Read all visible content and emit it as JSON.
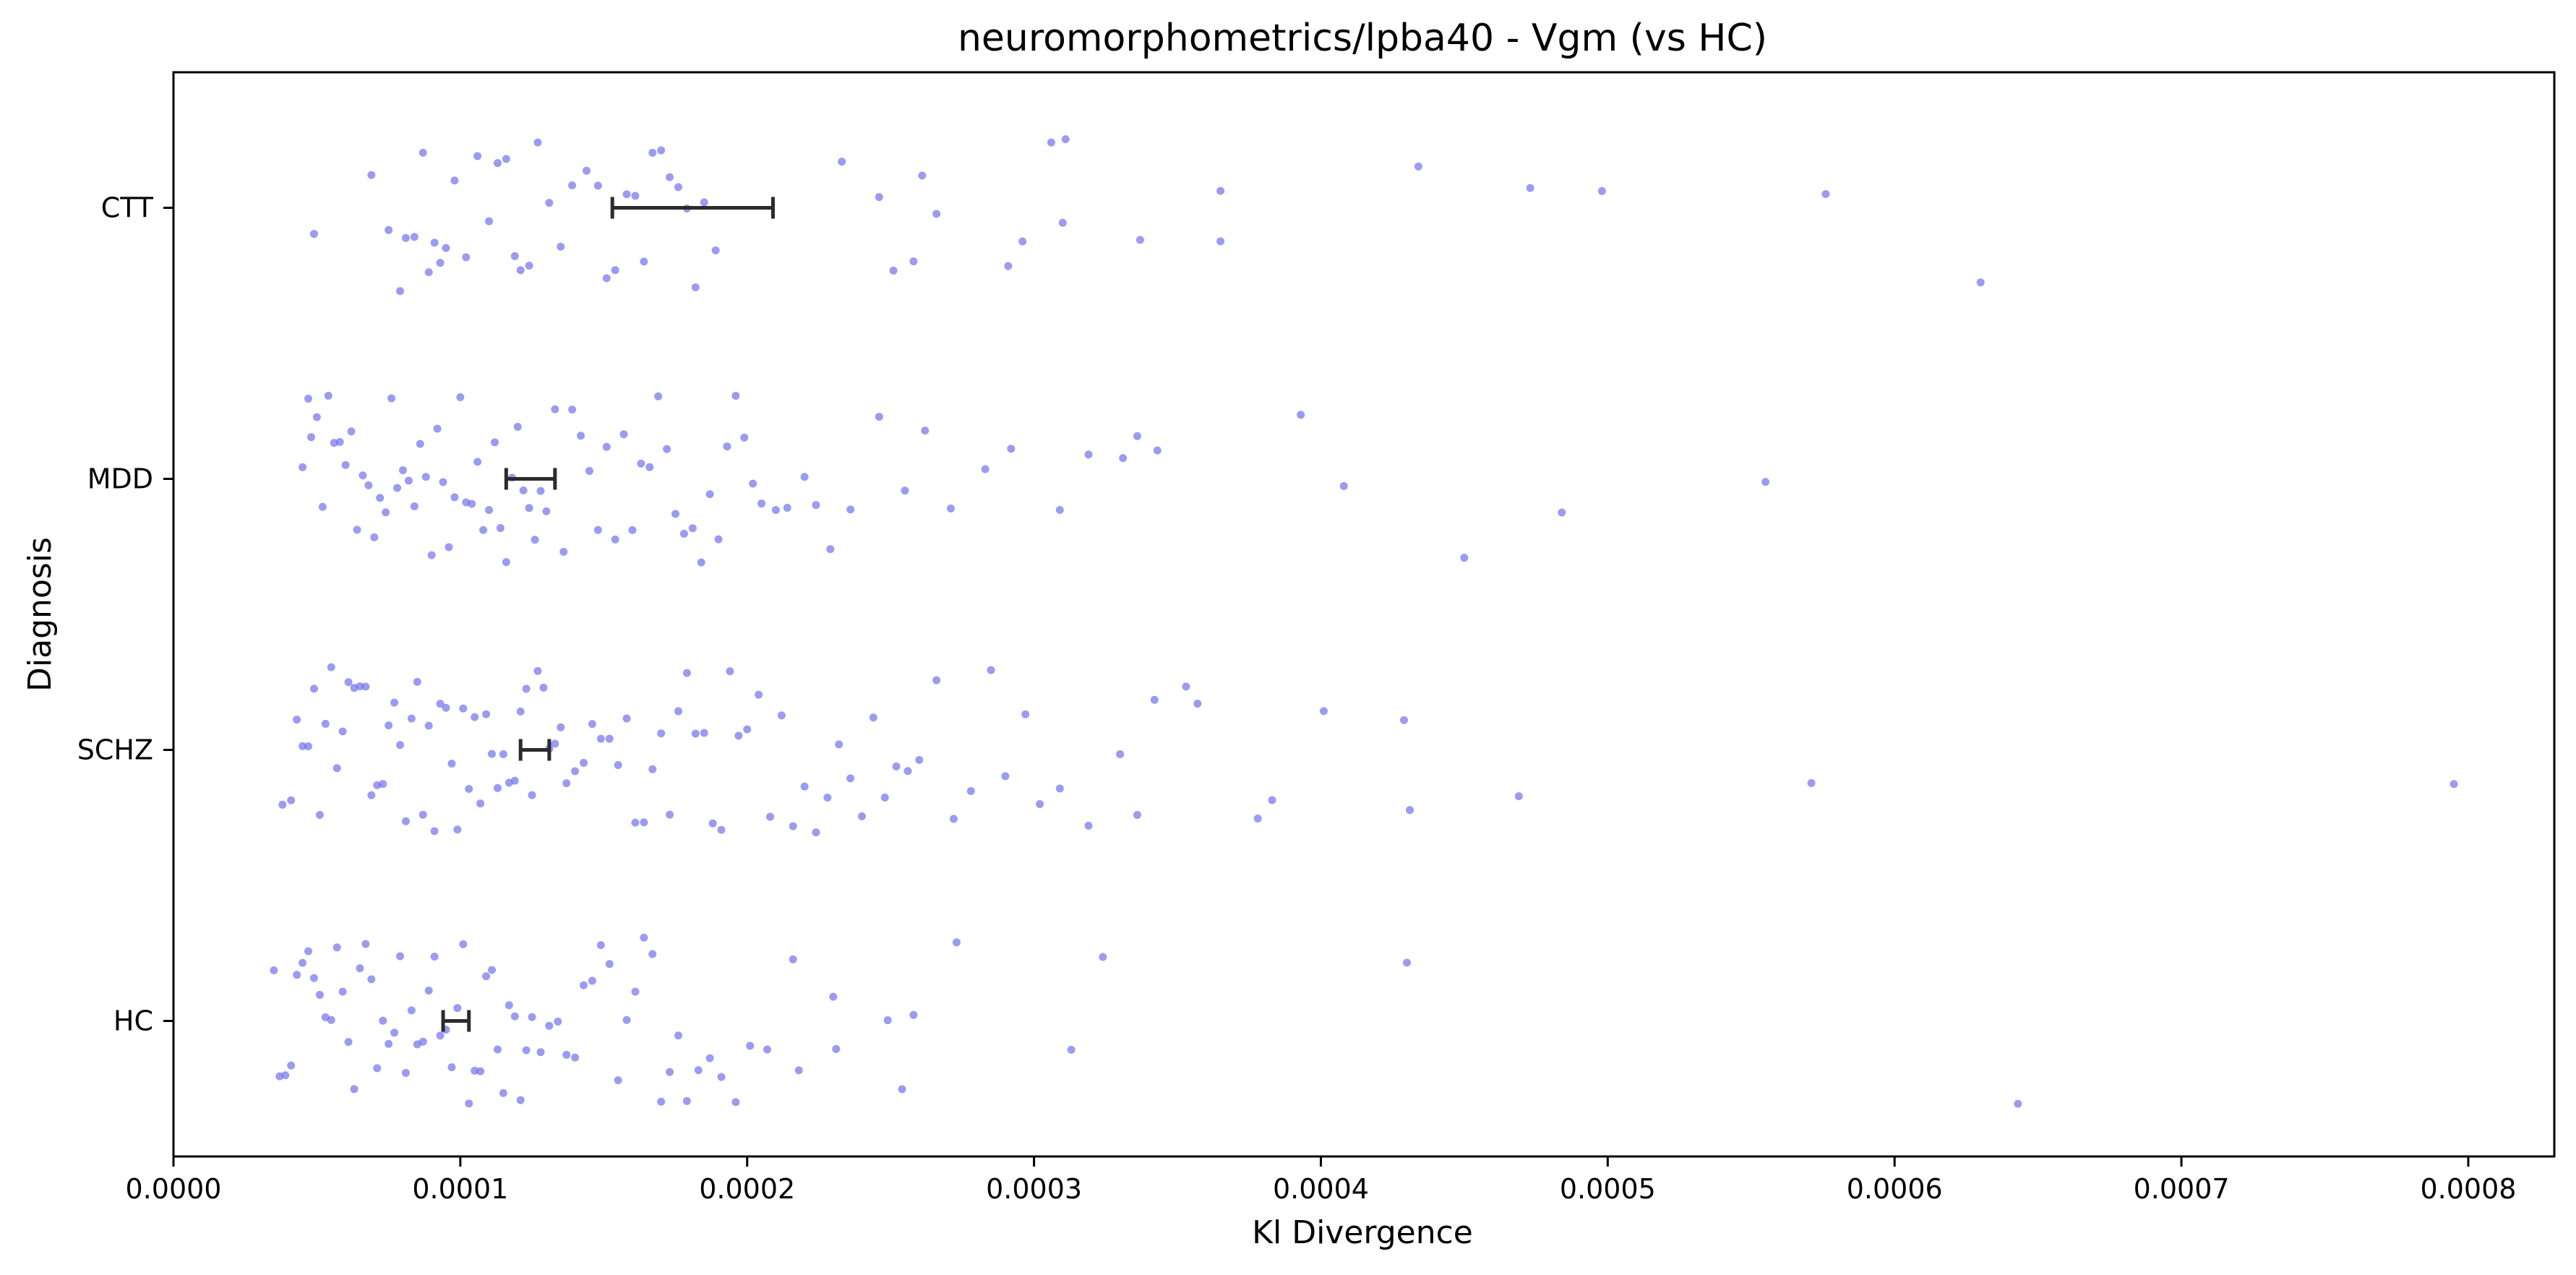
{
  "chart_data": {
    "type": "scatter",
    "subtype": "horizontal strip plot (jittered points with mean and error bars)",
    "title": "neuromorphometrics/lpba40 - Vgm (vs HC)",
    "xlabel": "Kl Divergence",
    "ylabel": "Diagnosis",
    "xlim": [
      0.0,
      0.00083
    ],
    "x_ticks": [
      0.0,
      0.0001,
      0.0002,
      0.0003,
      0.0004,
      0.0005,
      0.0006,
      0.0007,
      0.0008
    ],
    "x_tick_labels": [
      "0.0000",
      "0.0001",
      "0.0002",
      "0.0003",
      "0.0004",
      "0.0005",
      "0.0006",
      "0.0007",
      "0.0008"
    ],
    "categories": [
      "CTT",
      "MDD",
      "SCHZ",
      "HC"
    ],
    "grid": false,
    "legend": "none",
    "point_color": "#6b6bea",
    "errorbar_color": "#2b2b2b",
    "series": [
      {
        "category": "CTT",
        "mean": 0.000181,
        "ci": [
          0.000153,
          0.000209
        ],
        "sample_points": [
          4.9e-05,
          6.9e-05,
          7.5e-05,
          7.9e-05,
          8.1e-05,
          8.4e-05,
          8.7e-05,
          8.9e-05,
          9.1e-05,
          9.3e-05,
          9.5e-05,
          9.8e-05,
          0.000102,
          0.000106,
          0.00011,
          0.000113,
          0.000116,
          0.000119,
          0.000121,
          0.000124,
          0.000127,
          0.000131,
          0.000135,
          0.000139,
          0.000144,
          0.000148,
          0.000151,
          0.000154,
          0.000158,
          0.000161,
          0.000164,
          0.000167,
          0.00017,
          0.000173,
          0.000176,
          0.000179,
          0.000182,
          0.000185,
          0.000189,
          0.000233,
          0.000246,
          0.000251,
          0.000258,
          0.000261,
          0.000266,
          0.000291,
          0.000296,
          0.000306,
          0.00031,
          0.000311,
          0.000337,
          0.000365,
          0.000365,
          0.000434,
          0.000473,
          0.000498,
          0.000576,
          0.00063
        ]
      },
      {
        "category": "MDD",
        "mean": 0.000124,
        "ci": [
          0.000116,
          0.000133
        ],
        "sample_points": [
          4.5e-05,
          4.7e-05,
          4.8e-05,
          5e-05,
          5.2e-05,
          5.4e-05,
          5.6e-05,
          5.8e-05,
          6e-05,
          6.2e-05,
          6.4e-05,
          6.6e-05,
          6.8e-05,
          7e-05,
          7.2e-05,
          7.4e-05,
          7.6e-05,
          7.8e-05,
          8e-05,
          8.2e-05,
          8.4e-05,
          8.6e-05,
          8.8e-05,
          9e-05,
          9.2e-05,
          9.4e-05,
          9.6e-05,
          9.8e-05,
          0.0001,
          0.000102,
          0.000104,
          0.000106,
          0.000108,
          0.00011,
          0.000112,
          0.000114,
          0.000116,
          0.000118,
          0.00012,
          0.000122,
          0.000124,
          0.000126,
          0.000128,
          0.00013,
          0.000133,
          0.000136,
          0.000139,
          0.000142,
          0.000145,
          0.000148,
          0.000151,
          0.000154,
          0.000157,
          0.00016,
          0.000163,
          0.000166,
          0.000169,
          0.000172,
          0.000175,
          0.000178,
          0.000181,
          0.000184,
          0.000187,
          0.00019,
          0.000193,
          0.000196,
          0.000199,
          0.000202,
          0.000205,
          0.00021,
          0.000214,
          0.00022,
          0.000224,
          0.000229,
          0.000236,
          0.000246,
          0.000255,
          0.000262,
          0.000271,
          0.000283,
          0.000292,
          0.000309,
          0.000319,
          0.000331,
          0.000336,
          0.000343,
          0.000393,
          0.000408,
          0.00045,
          0.000484,
          0.000555
        ]
      },
      {
        "category": "SCHZ",
        "mean": 0.000126,
        "ci": [
          0.000121,
          0.000131
        ],
        "sample_points": [
          3.8e-05,
          4.1e-05,
          4.3e-05,
          4.5e-05,
          4.7e-05,
          4.9e-05,
          5.1e-05,
          5.3e-05,
          5.5e-05,
          5.7e-05,
          5.9e-05,
          6.1e-05,
          6.3e-05,
          6.5e-05,
          6.7e-05,
          6.9e-05,
          7.1e-05,
          7.3e-05,
          7.5e-05,
          7.7e-05,
          7.9e-05,
          8.1e-05,
          8.3e-05,
          8.5e-05,
          8.7e-05,
          8.9e-05,
          9.1e-05,
          9.3e-05,
          9.5e-05,
          9.7e-05,
          9.9e-05,
          0.000101,
          0.000103,
          0.000105,
          0.000107,
          0.000109,
          0.000111,
          0.000113,
          0.000115,
          0.000117,
          0.000119,
          0.000121,
          0.000123,
          0.000125,
          0.000127,
          0.000129,
          0.000131,
          0.000133,
          0.000135,
          0.000137,
          0.00014,
          0.000143,
          0.000146,
          0.000149,
          0.000152,
          0.000155,
          0.000158,
          0.000161,
          0.000164,
          0.000167,
          0.00017,
          0.000173,
          0.000176,
          0.000179,
          0.000182,
          0.000185,
          0.000188,
          0.000191,
          0.000194,
          0.000197,
          0.0002,
          0.000204,
          0.000208,
          0.000212,
          0.000216,
          0.00022,
          0.000224,
          0.000228,
          0.000232,
          0.000236,
          0.00024,
          0.000244,
          0.000248,
          0.000252,
          0.000256,
          0.00026,
          0.000266,
          0.000272,
          0.000278,
          0.000285,
          0.00029,
          0.000297,
          0.000302,
          0.000309,
          0.000319,
          0.00033,
          0.000336,
          0.000342,
          0.000353,
          0.000357,
          0.000378,
          0.000383,
          0.000401,
          0.000429,
          0.000431,
          0.000469,
          0.000571,
          0.000795
        ]
      },
      {
        "category": "HC",
        "mean": 9.8e-05,
        "ci": [
          9.4e-05,
          0.000103
        ],
        "sample_points": [
          3.5e-05,
          3.7e-05,
          3.9e-05,
          4.1e-05,
          4.3e-05,
          4.5e-05,
          4.7e-05,
          4.9e-05,
          5.1e-05,
          5.3e-05,
          5.5e-05,
          5.7e-05,
          5.9e-05,
          6.1e-05,
          6.3e-05,
          6.5e-05,
          6.7e-05,
          6.9e-05,
          7.1e-05,
          7.3e-05,
          7.5e-05,
          7.7e-05,
          7.9e-05,
          8.1e-05,
          8.3e-05,
          8.5e-05,
          8.7e-05,
          8.9e-05,
          9.1e-05,
          9.3e-05,
          9.5e-05,
          9.7e-05,
          9.9e-05,
          0.000101,
          0.000103,
          0.000105,
          0.000107,
          0.000109,
          0.000111,
          0.000113,
          0.000115,
          0.000117,
          0.000119,
          0.000121,
          0.000123,
          0.000125,
          0.000128,
          0.000131,
          0.000134,
          0.000137,
          0.00014,
          0.000143,
          0.000146,
          0.000149,
          0.000152,
          0.000155,
          0.000158,
          0.000161,
          0.000164,
          0.000167,
          0.00017,
          0.000173,
          0.000176,
          0.000179,
          0.000183,
          0.000187,
          0.000191,
          0.000196,
          0.000201,
          0.000207,
          0.000216,
          0.000218,
          0.00023,
          0.000231,
          0.000249,
          0.000254,
          0.000258,
          0.000273,
          0.000313,
          0.000324,
          0.00043,
          0.000643
        ]
      }
    ]
  }
}
